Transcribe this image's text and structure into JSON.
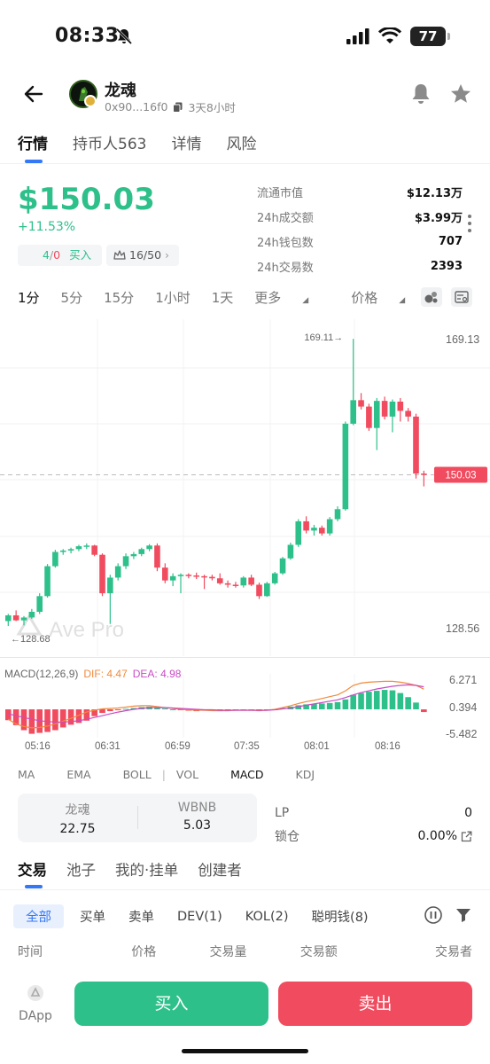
{
  "status": {
    "time": "08:33",
    "battery": "77"
  },
  "header": {
    "title": "龙魂",
    "address": "0x90...16f0",
    "age": "3天8小时"
  },
  "main_tabs": [
    "行情",
    "持币人563",
    "详情",
    "风险"
  ],
  "price": {
    "value": "$150.03",
    "change": "+11.53%"
  },
  "chips": {
    "buy_count_a": "4",
    "buy_count_sep": "/",
    "buy_count_b": "0",
    "buy_label": "买入",
    "rank": "16/50"
  },
  "stats": [
    {
      "label": "流通市值",
      "value": "$12.13万"
    },
    {
      "label": "24h成交额",
      "value": "$3.99万"
    },
    {
      "label": "24h钱包数",
      "value": "707"
    },
    {
      "label": "24h交易数",
      "value": "2393"
    }
  ],
  "timeframes": [
    "1分",
    "5分",
    "15分",
    "1小时",
    "1天",
    "更多",
    "价格"
  ],
  "chart_labels": {
    "high_marker": "169.11→",
    "low_marker": "←128.68",
    "price_top": "169.13",
    "price_bottom": "128.56",
    "current_price": "150.03",
    "watermark": "Ave Pro"
  },
  "macd": {
    "title": "MACD(12,26,9)",
    "dif_label": "DIF:",
    "dif_value": "4.47",
    "dea_label": "DEA:",
    "dea_value": "4.98",
    "axis": [
      "6.271",
      "0.394",
      "-5.482"
    ],
    "times": [
      "05:16",
      "06:31",
      "06:59",
      "07:35",
      "08:01",
      "08:16"
    ]
  },
  "indicators": [
    "MA",
    "EMA",
    "BOLL",
    "VOL",
    "MACD",
    "KDJ"
  ],
  "swap": {
    "left_name": "龙魂",
    "left_value": "22.75",
    "right_name": "WBNB",
    "right_value": "5.03"
  },
  "lp": {
    "lp_label": "LP",
    "lp_value": "0",
    "lock_label": "锁仓",
    "lock_value": "0.00%"
  },
  "trade_tabs": [
    "交易",
    "池子",
    "我的·挂单",
    "创建者"
  ],
  "filters": [
    "全部",
    "买单",
    "卖单",
    "DEV(1)",
    "KOL(2)",
    "聪明钱(8)"
  ],
  "columns": [
    "时间",
    "价格",
    "交易量",
    "交易额",
    "交易者"
  ],
  "bottom": {
    "dapp": "DApp",
    "buy": "买入",
    "sell": "卖出"
  },
  "colors": {
    "up": "#2ec08b",
    "down": "#f04b5e",
    "accent": "#3478f6"
  },
  "chart_data": {
    "type": "candlestick",
    "y_range": [
      128.56,
      169.13
    ],
    "candles": [
      {
        "o": 129.5,
        "h": 130.5,
        "l": 128.8,
        "c": 130.3
      },
      {
        "o": 130.3,
        "h": 131,
        "l": 129.5,
        "c": 129.6
      },
      {
        "o": 129.6,
        "h": 130.2,
        "l": 128.9,
        "c": 130
      },
      {
        "o": 130,
        "h": 131.2,
        "l": 129.8,
        "c": 130.8
      },
      {
        "o": 130.8,
        "h": 133.4,
        "l": 130.5,
        "c": 133
      },
      {
        "o": 133,
        "h": 137.5,
        "l": 132.8,
        "c": 137.2
      },
      {
        "o": 137.2,
        "h": 139.5,
        "l": 137,
        "c": 139.2
      },
      {
        "o": 139.2,
        "h": 139.6,
        "l": 138.8,
        "c": 139.4
      },
      {
        "o": 139.4,
        "h": 139.8,
        "l": 139,
        "c": 139.6
      },
      {
        "o": 139.6,
        "h": 140.2,
        "l": 139.3,
        "c": 140
      },
      {
        "o": 140,
        "h": 140.4,
        "l": 139.6,
        "c": 140.1
      },
      {
        "o": 140.1,
        "h": 140.2,
        "l": 138.6,
        "c": 138.8
      },
      {
        "o": 138.8,
        "h": 139,
        "l": 133,
        "c": 133.4
      },
      {
        "o": 133.4,
        "h": 136,
        "l": 129.1,
        "c": 135.6
      },
      {
        "o": 135.6,
        "h": 137.6,
        "l": 135.2,
        "c": 137.2
      },
      {
        "o": 137.2,
        "h": 139,
        "l": 136.8,
        "c": 138.6
      },
      {
        "o": 138.6,
        "h": 139.2,
        "l": 138.2,
        "c": 138.9
      },
      {
        "o": 138.9,
        "h": 139.8,
        "l": 138.6,
        "c": 139.6
      },
      {
        "o": 139.6,
        "h": 140.3,
        "l": 139.3,
        "c": 140.1
      },
      {
        "o": 140.1,
        "h": 140.4,
        "l": 136.5,
        "c": 137
      },
      {
        "o": 137,
        "h": 137.6,
        "l": 134.8,
        "c": 135.2
      },
      {
        "o": 135.2,
        "h": 136.2,
        "l": 134.4,
        "c": 135.8
      },
      {
        "o": 135.8,
        "h": 136.2,
        "l": 133.4,
        "c": 136
      },
      {
        "o": 136,
        "h": 136.2,
        "l": 135.5,
        "c": 135.9
      },
      {
        "o": 135.9,
        "h": 136.3,
        "l": 135.4,
        "c": 135.8
      },
      {
        "o": 135.8,
        "h": 136,
        "l": 134,
        "c": 135.7
      },
      {
        "o": 135.7,
        "h": 136,
        "l": 135.2,
        "c": 135.5
      },
      {
        "o": 135.5,
        "h": 136.2,
        "l": 134.6,
        "c": 134.8
      },
      {
        "o": 134.8,
        "h": 135.2,
        "l": 134.2,
        "c": 134.6
      },
      {
        "o": 134.6,
        "h": 135,
        "l": 134.2,
        "c": 134.5
      },
      {
        "o": 134.5,
        "h": 135.8,
        "l": 134.2,
        "c": 135.6
      },
      {
        "o": 135.6,
        "h": 136,
        "l": 134.4,
        "c": 134.6
      },
      {
        "o": 134.6,
        "h": 134.9,
        "l": 132.6,
        "c": 133
      },
      {
        "o": 133,
        "h": 135,
        "l": 132.9,
        "c": 134.8
      },
      {
        "o": 134.8,
        "h": 136.4,
        "l": 134.6,
        "c": 136.2
      },
      {
        "o": 136.2,
        "h": 138.5,
        "l": 136,
        "c": 138.3
      },
      {
        "o": 138.3,
        "h": 140.5,
        "l": 138.1,
        "c": 140.2
      },
      {
        "o": 140.2,
        "h": 143.8,
        "l": 139.9,
        "c": 143.5
      },
      {
        "o": 143.5,
        "h": 144.2,
        "l": 141.8,
        "c": 142.2
      },
      {
        "o": 142.2,
        "h": 143,
        "l": 141.5,
        "c": 142.6
      },
      {
        "o": 142.6,
        "h": 142.9,
        "l": 141.5,
        "c": 141.8
      },
      {
        "o": 141.8,
        "h": 144.1,
        "l": 141.5,
        "c": 143.8
      },
      {
        "o": 143.8,
        "h": 145.6,
        "l": 143.5,
        "c": 145.2
      },
      {
        "o": 145.2,
        "h": 157.5,
        "l": 145,
        "c": 157.2
      },
      {
        "o": 157.2,
        "h": 169.11,
        "l": 157,
        "c": 160.5
      },
      {
        "o": 160.5,
        "h": 161.5,
        "l": 159.2,
        "c": 159.6
      },
      {
        "o": 159.6,
        "h": 160,
        "l": 156.2,
        "c": 156.6
      },
      {
        "o": 156.6,
        "h": 160.8,
        "l": 153.5,
        "c": 160.4
      },
      {
        "o": 160.4,
        "h": 161,
        "l": 157.8,
        "c": 158.2
      },
      {
        "o": 158.2,
        "h": 160.6,
        "l": 156,
        "c": 160.3
      },
      {
        "o": 160.3,
        "h": 160.8,
        "l": 157.5,
        "c": 159
      },
      {
        "o": 159,
        "h": 159.4,
        "l": 157.5,
        "c": 158.2
      },
      {
        "o": 158.2,
        "h": 158.6,
        "l": 149.5,
        "c": 150.2
      },
      {
        "o": 150.2,
        "h": 150.6,
        "l": 148.4,
        "c": 150.03
      }
    ],
    "macd_hist": [
      -2.4,
      -3.5,
      -4.6,
      -5.4,
      -5.2,
      -5,
      -4.6,
      -4,
      -3.4,
      -3,
      -2.5,
      -1.5,
      -0.8,
      -0.4,
      -0.2,
      0.1,
      0.3,
      0.5,
      0.6,
      0.4,
      0.2,
      0,
      -0.2,
      -0.3,
      -0.4,
      -0.3,
      -0.3,
      -0.4,
      -0.4,
      -0.3,
      -0.3,
      -0.3,
      -0.4,
      -0.3,
      -0.1,
      0.3,
      0.6,
      0.9,
      1.1,
      1.2,
      1.3,
      1.4,
      1.6,
      2.2,
      3.2,
      3.6,
      3.9,
      4.1,
      4.3,
      4.2,
      3.6,
      2.7,
      1.5,
      -0.6
    ],
    "dif": [
      -2.2,
      -3.2,
      -3.8,
      -4.1,
      -4,
      -3.7,
      -3.2,
      -2.6,
      -2,
      -1.3,
      -0.6,
      -0.2,
      0.1,
      0.2,
      0.3,
      0.5,
      0.7,
      0.8,
      0.8,
      0.6,
      0.4,
      0.2,
      0,
      -0.1,
      -0.2,
      -0.2,
      -0.3,
      -0.3,
      -0.3,
      -0.2,
      -0.2,
      -0.2,
      -0.3,
      -0.2,
      0,
      0.4,
      0.8,
      1.3,
      1.7,
      2,
      2.4,
      2.8,
      3.2,
      4.1,
      5.3,
      5.8,
      6,
      6.1,
      6.2,
      6.2,
      6,
      5.7,
      5.3,
      4.47
    ],
    "dea": [
      -1,
      -1.4,
      -1.8,
      -2.2,
      -2.5,
      -2.7,
      -2.8,
      -2.8,
      -2.7,
      -2.5,
      -2.2,
      -1.8,
      -1.4,
      -1,
      -0.6,
      -0.3,
      0,
      0.2,
      0.4,
      0.4,
      0.4,
      0.3,
      0.2,
      0.1,
      0,
      -0.1,
      -0.1,
      -0.2,
      -0.2,
      -0.2,
      -0.2,
      -0.2,
      -0.2,
      -0.2,
      -0.1,
      0.1,
      0.3,
      0.6,
      0.9,
      1.2,
      1.5,
      1.8,
      2.1,
      2.6,
      3.2,
      3.7,
      4.1,
      4.5,
      4.8,
      5.1,
      5.3,
      5.4,
      5.3,
      4.98
    ],
    "macd_range": [
      -5.482,
      6.271
    ]
  }
}
